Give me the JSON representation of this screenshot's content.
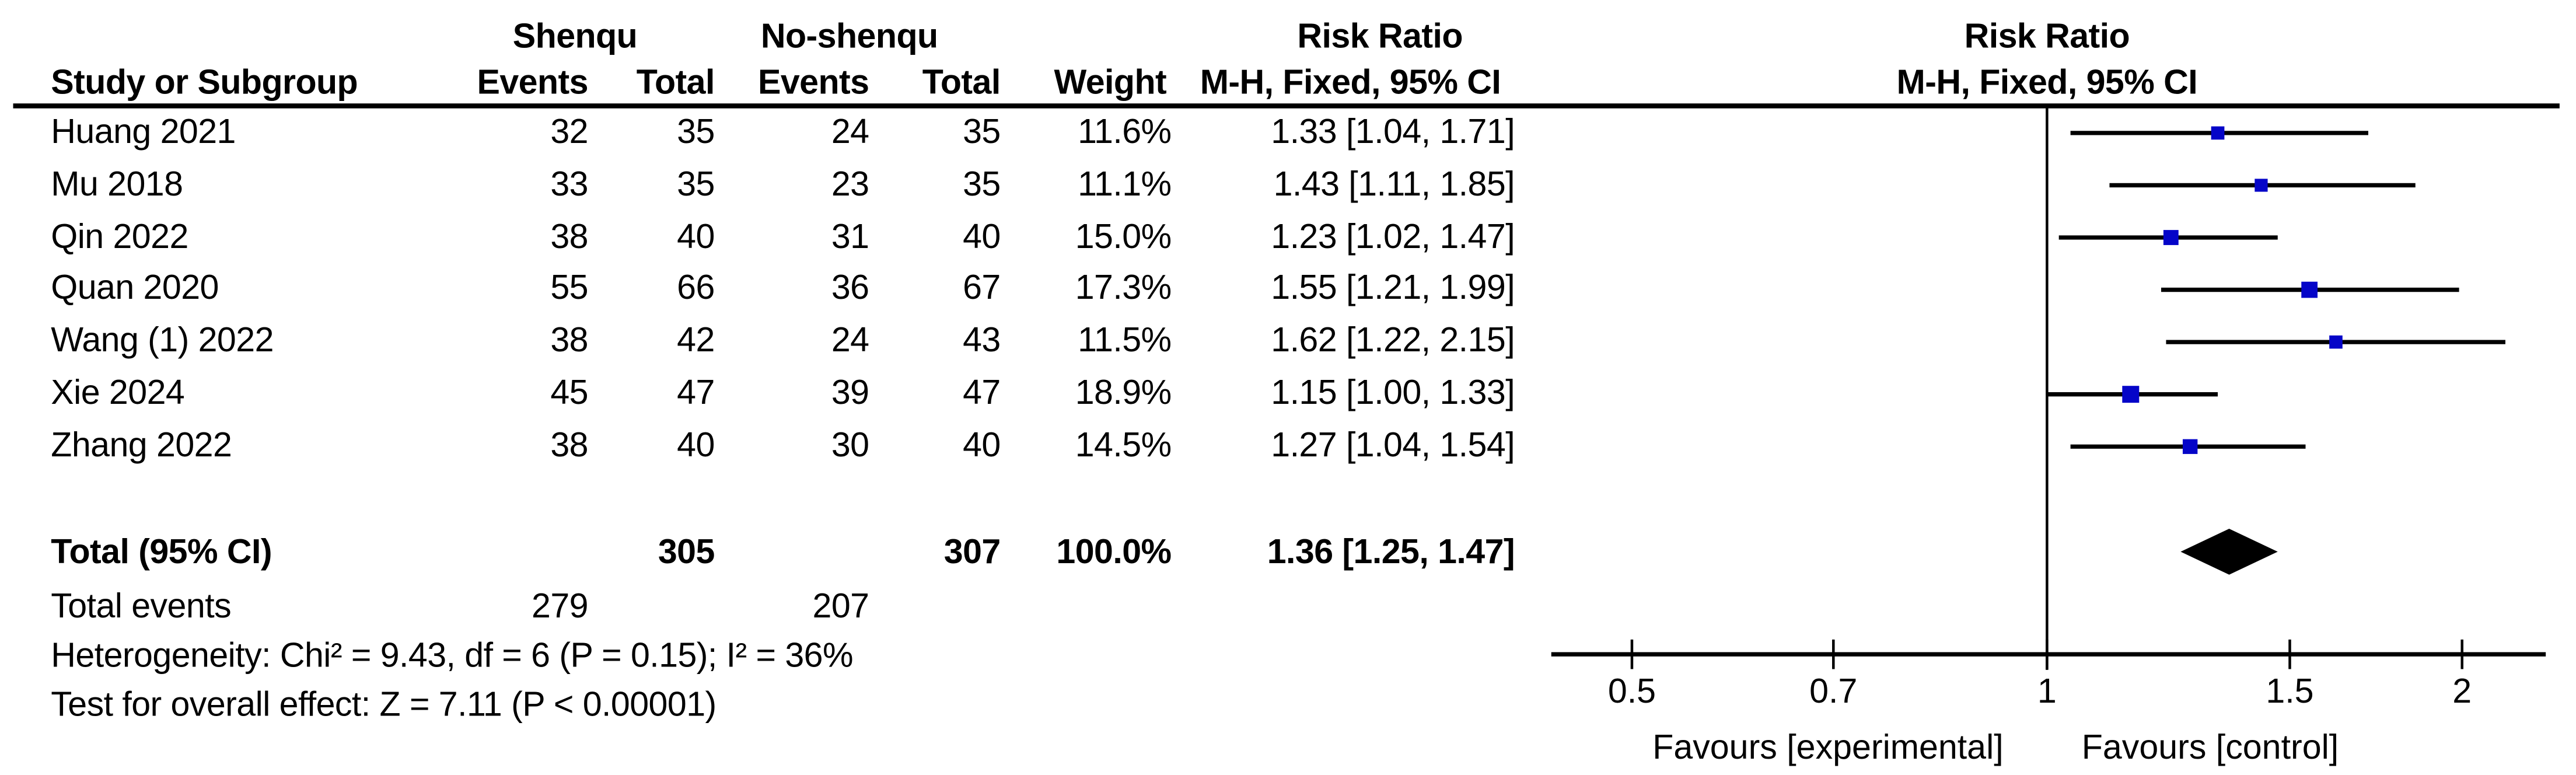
{
  "header": {
    "group_experimental": "Shenqu",
    "group_control": "No-shenqu",
    "col_study": "Study or Subgroup",
    "col_events_exp": "Events",
    "col_total_exp": "Total",
    "col_events_ctrl": "Events",
    "col_total_ctrl": "Total",
    "col_weight": "Weight",
    "effect_title_table": "Risk Ratio",
    "effect_subtitle_table": "M-H, Fixed, 95% CI",
    "effect_title_plot": "Risk Ratio",
    "effect_subtitle_plot": "M-H, Fixed, 95% CI"
  },
  "chart_data": {
    "type": "forest",
    "effect_measure": "Risk Ratio",
    "method": "M-H, Fixed, 95% CI",
    "x_scale": "log",
    "axis_ticks": [
      0.5,
      0.7,
      1,
      1.5,
      2
    ],
    "axis_tick_labels": [
      "0.5",
      "0.7",
      "1",
      "1.5",
      "2"
    ],
    "axis_line_range": [
      0.437,
      2.3
    ],
    "null_line_value": 1,
    "favours_left": "Favours [experimental]",
    "favours_right": "Favours [control]",
    "studies": [
      {
        "name": "Huang 2021",
        "exp_events": "32",
        "exp_total": "35",
        "ctrl_events": "24",
        "ctrl_total": "35",
        "weight": "11.6%",
        "weight_pct": 11.6,
        "rr_text": "1.33 [1.04, 1.71]",
        "rr": 1.33,
        "ci_low": 1.04,
        "ci_high": 1.71
      },
      {
        "name": "Mu 2018",
        "exp_events": "33",
        "exp_total": "35",
        "ctrl_events": "23",
        "ctrl_total": "35",
        "weight": "11.1%",
        "weight_pct": 11.1,
        "rr_text": "1.43 [1.11, 1.85]",
        "rr": 1.43,
        "ci_low": 1.11,
        "ci_high": 1.85
      },
      {
        "name": "Qin 2022",
        "exp_events": "38",
        "exp_total": "40",
        "ctrl_events": "31",
        "ctrl_total": "40",
        "weight": "15.0%",
        "weight_pct": 15.0,
        "rr_text": "1.23 [1.02, 1.47]",
        "rr": 1.23,
        "ci_low": 1.02,
        "ci_high": 1.47
      },
      {
        "name": "Quan 2020",
        "exp_events": "55",
        "exp_total": "66",
        "ctrl_events": "36",
        "ctrl_total": "67",
        "weight": "17.3%",
        "weight_pct": 17.3,
        "rr_text": "1.55 [1.21, 1.99]",
        "rr": 1.55,
        "ci_low": 1.21,
        "ci_high": 1.99
      },
      {
        "name": "Wang (1) 2022",
        "exp_events": "38",
        "exp_total": "42",
        "ctrl_events": "24",
        "ctrl_total": "43",
        "weight": "11.5%",
        "weight_pct": 11.5,
        "rr_text": "1.62 [1.22, 2.15]",
        "rr": 1.62,
        "ci_low": 1.22,
        "ci_high": 2.15
      },
      {
        "name": "Xie 2024",
        "exp_events": "45",
        "exp_total": "47",
        "ctrl_events": "39",
        "ctrl_total": "47",
        "weight": "18.9%",
        "weight_pct": 18.9,
        "rr_text": "1.15 [1.00, 1.33]",
        "rr": 1.15,
        "ci_low": 1.0,
        "ci_high": 1.33
      },
      {
        "name": "Zhang 2022",
        "exp_events": "38",
        "exp_total": "40",
        "ctrl_events": "30",
        "ctrl_total": "40",
        "weight": "14.5%",
        "weight_pct": 14.5,
        "rr_text": "1.27 [1.04, 1.54]",
        "rr": 1.27,
        "ci_low": 1.04,
        "ci_high": 1.54
      }
    ],
    "total": {
      "label": "Total (95% CI)",
      "exp_total": "305",
      "ctrl_total": "307",
      "weight": "100.0%",
      "rr_text": "1.36 [1.25, 1.47]",
      "rr": 1.36,
      "ci_low": 1.25,
      "ci_high": 1.47
    },
    "total_events": {
      "label": "Total events",
      "exp": "279",
      "ctrl": "207"
    },
    "heterogeneity": "Heterogeneity: Chi² = 9.43, df = 6 (P = 0.15); I² = 36%",
    "overall_effect": "Test for overall effect: Z = 7.11 (P < 0.00001)",
    "marker_color": "#0505C8",
    "line_color": "#000000"
  }
}
